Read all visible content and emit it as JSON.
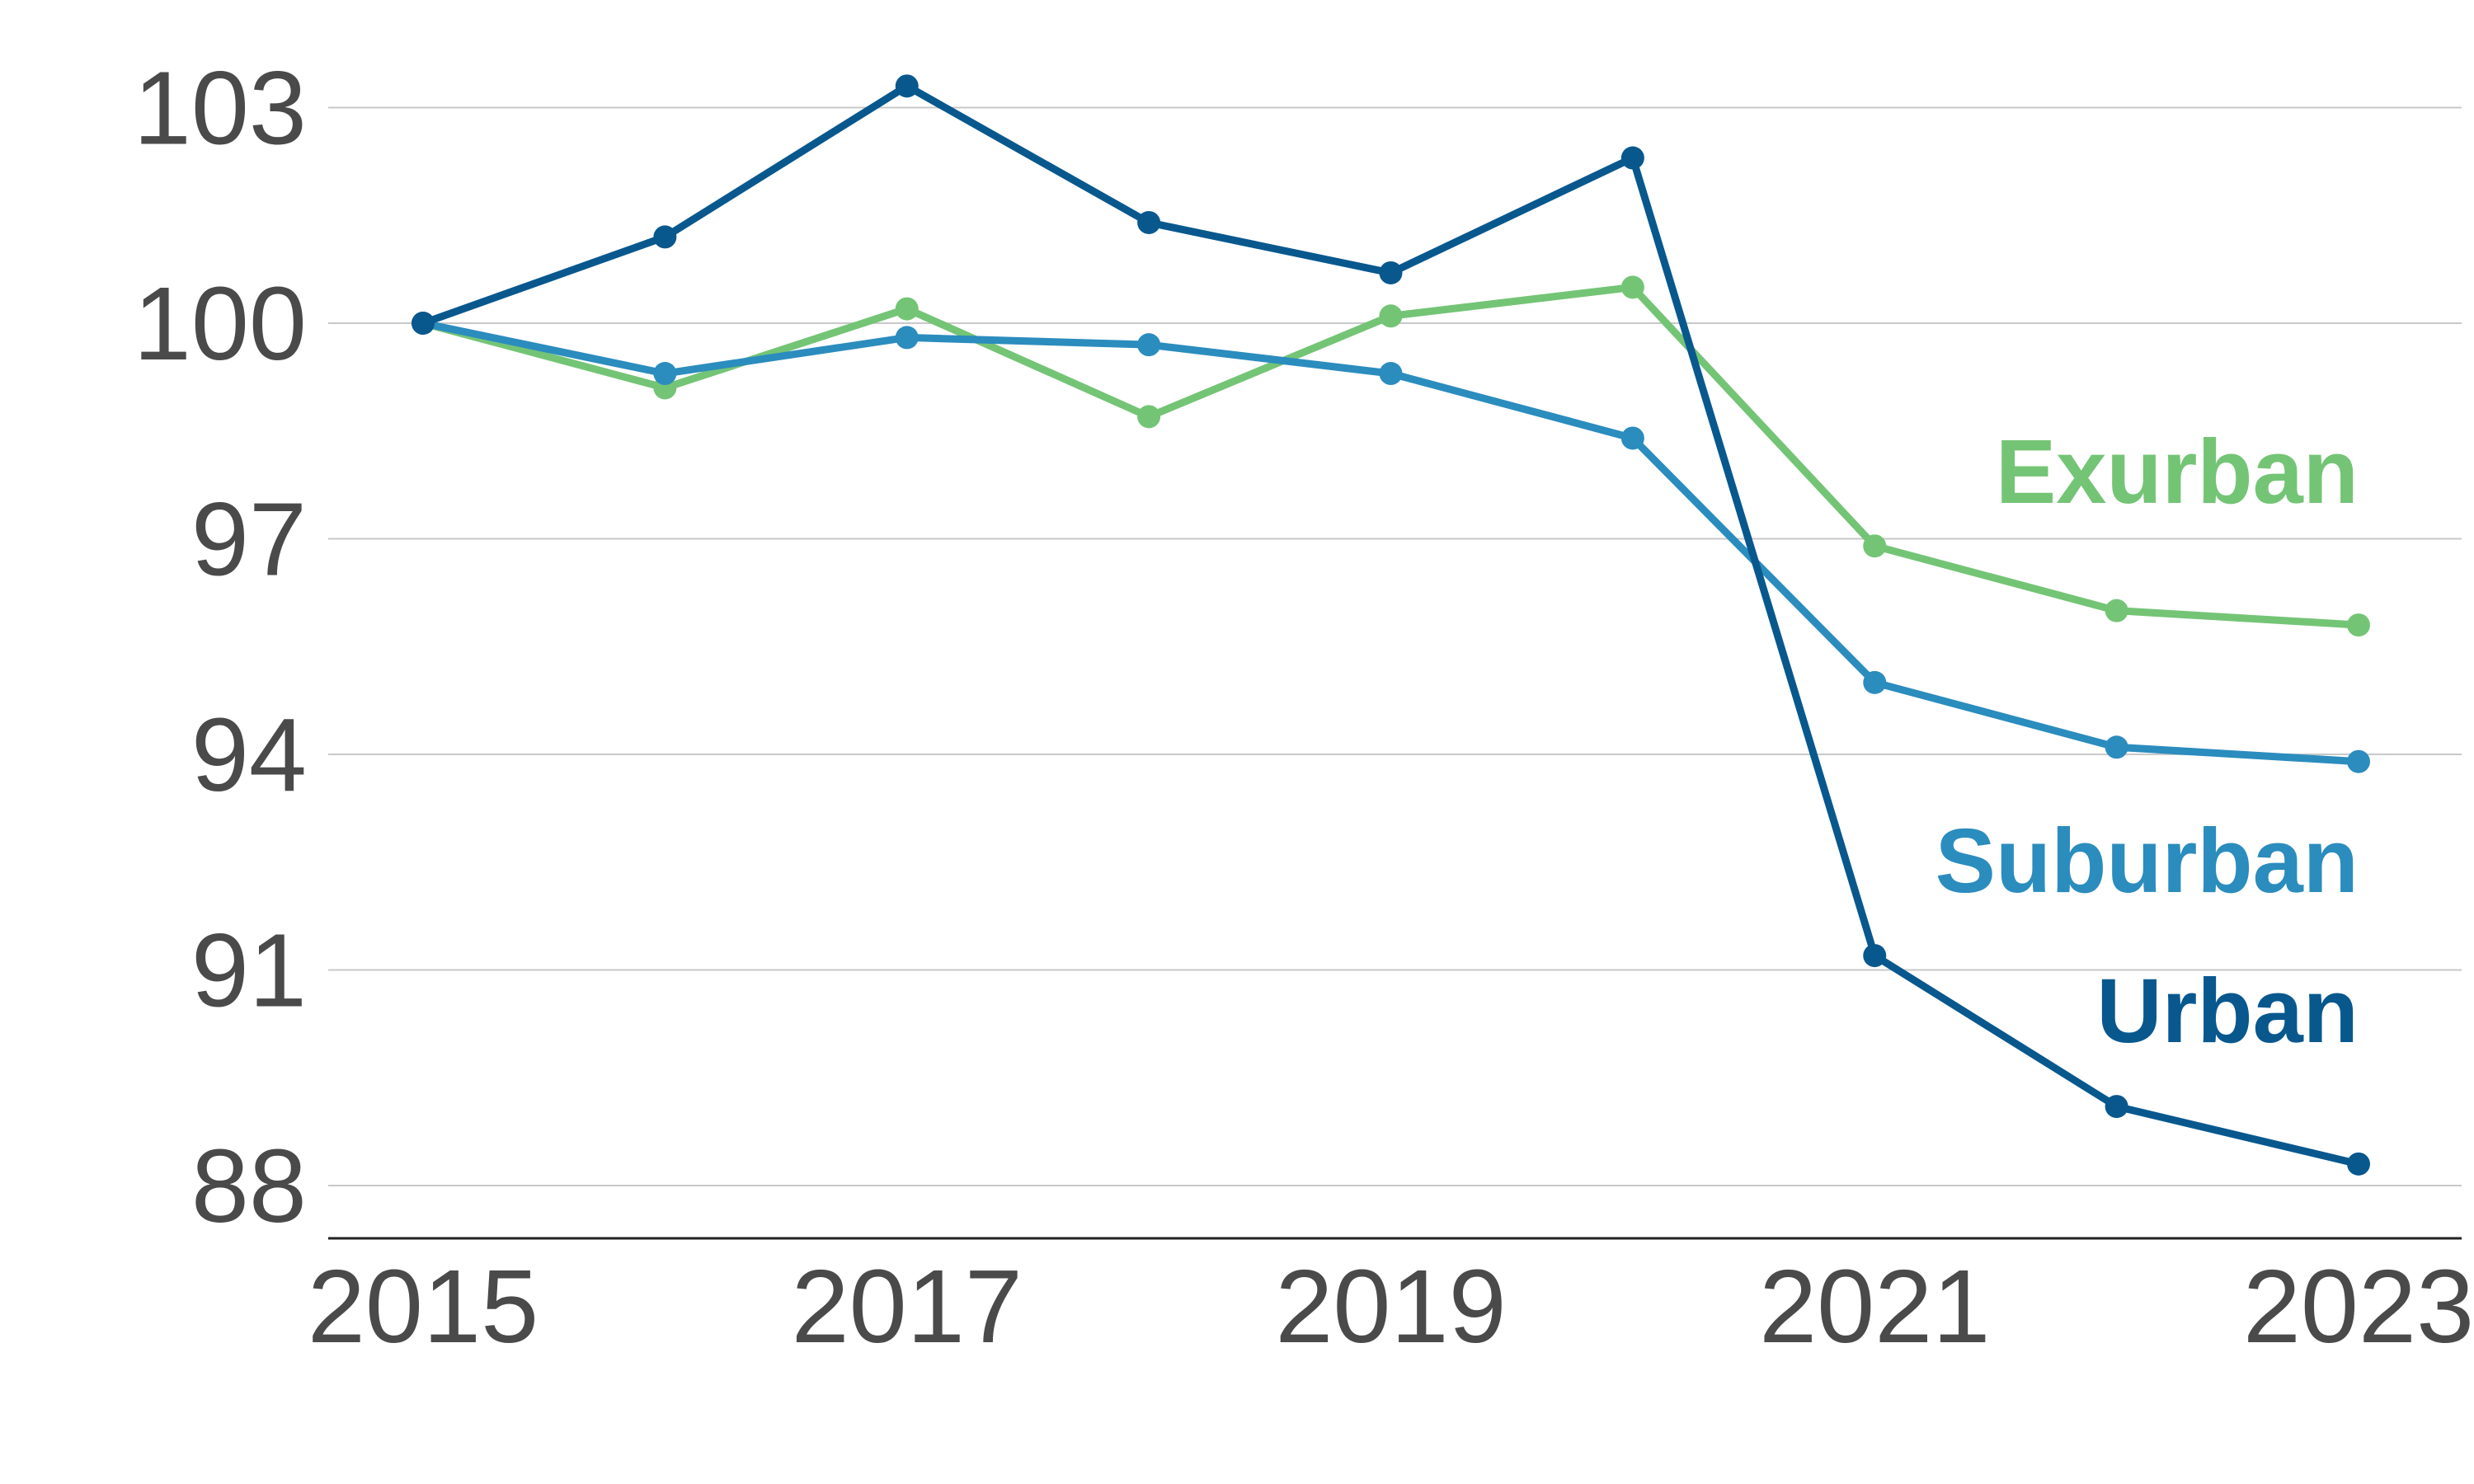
{
  "chart_data": {
    "type": "line",
    "title": "",
    "xlabel": "",
    "ylabel": "",
    "x": [
      2015,
      2016,
      2017,
      2018,
      2019,
      2020,
      2021,
      2022,
      2023
    ],
    "x_ticks": [
      "2015",
      "2017",
      "2019",
      "2021",
      "2023"
    ],
    "y_ticks": [
      "88",
      "91",
      "94",
      "97",
      "100",
      "103"
    ],
    "ylim": [
      87.3,
      103.8
    ],
    "grid": true,
    "legend": "direct labels at right end of lines",
    "series": [
      {
        "name": "Exurban",
        "color": "#74c476",
        "values": [
          100,
          99.1,
          100.2,
          98.7,
          100.1,
          100.5,
          96.9,
          96.0,
          95.8
        ]
      },
      {
        "name": "Suburban",
        "color": "#2b8cbe",
        "values": [
          100,
          99.3,
          99.8,
          99.7,
          99.3,
          98.4,
          95.0,
          94.1,
          93.9
        ]
      },
      {
        "name": "Urban",
        "color": "#08588e",
        "values": [
          100,
          101.2,
          103.3,
          101.4,
          100.7,
          102.3,
          91.2,
          89.1,
          88.3
        ]
      }
    ]
  }
}
